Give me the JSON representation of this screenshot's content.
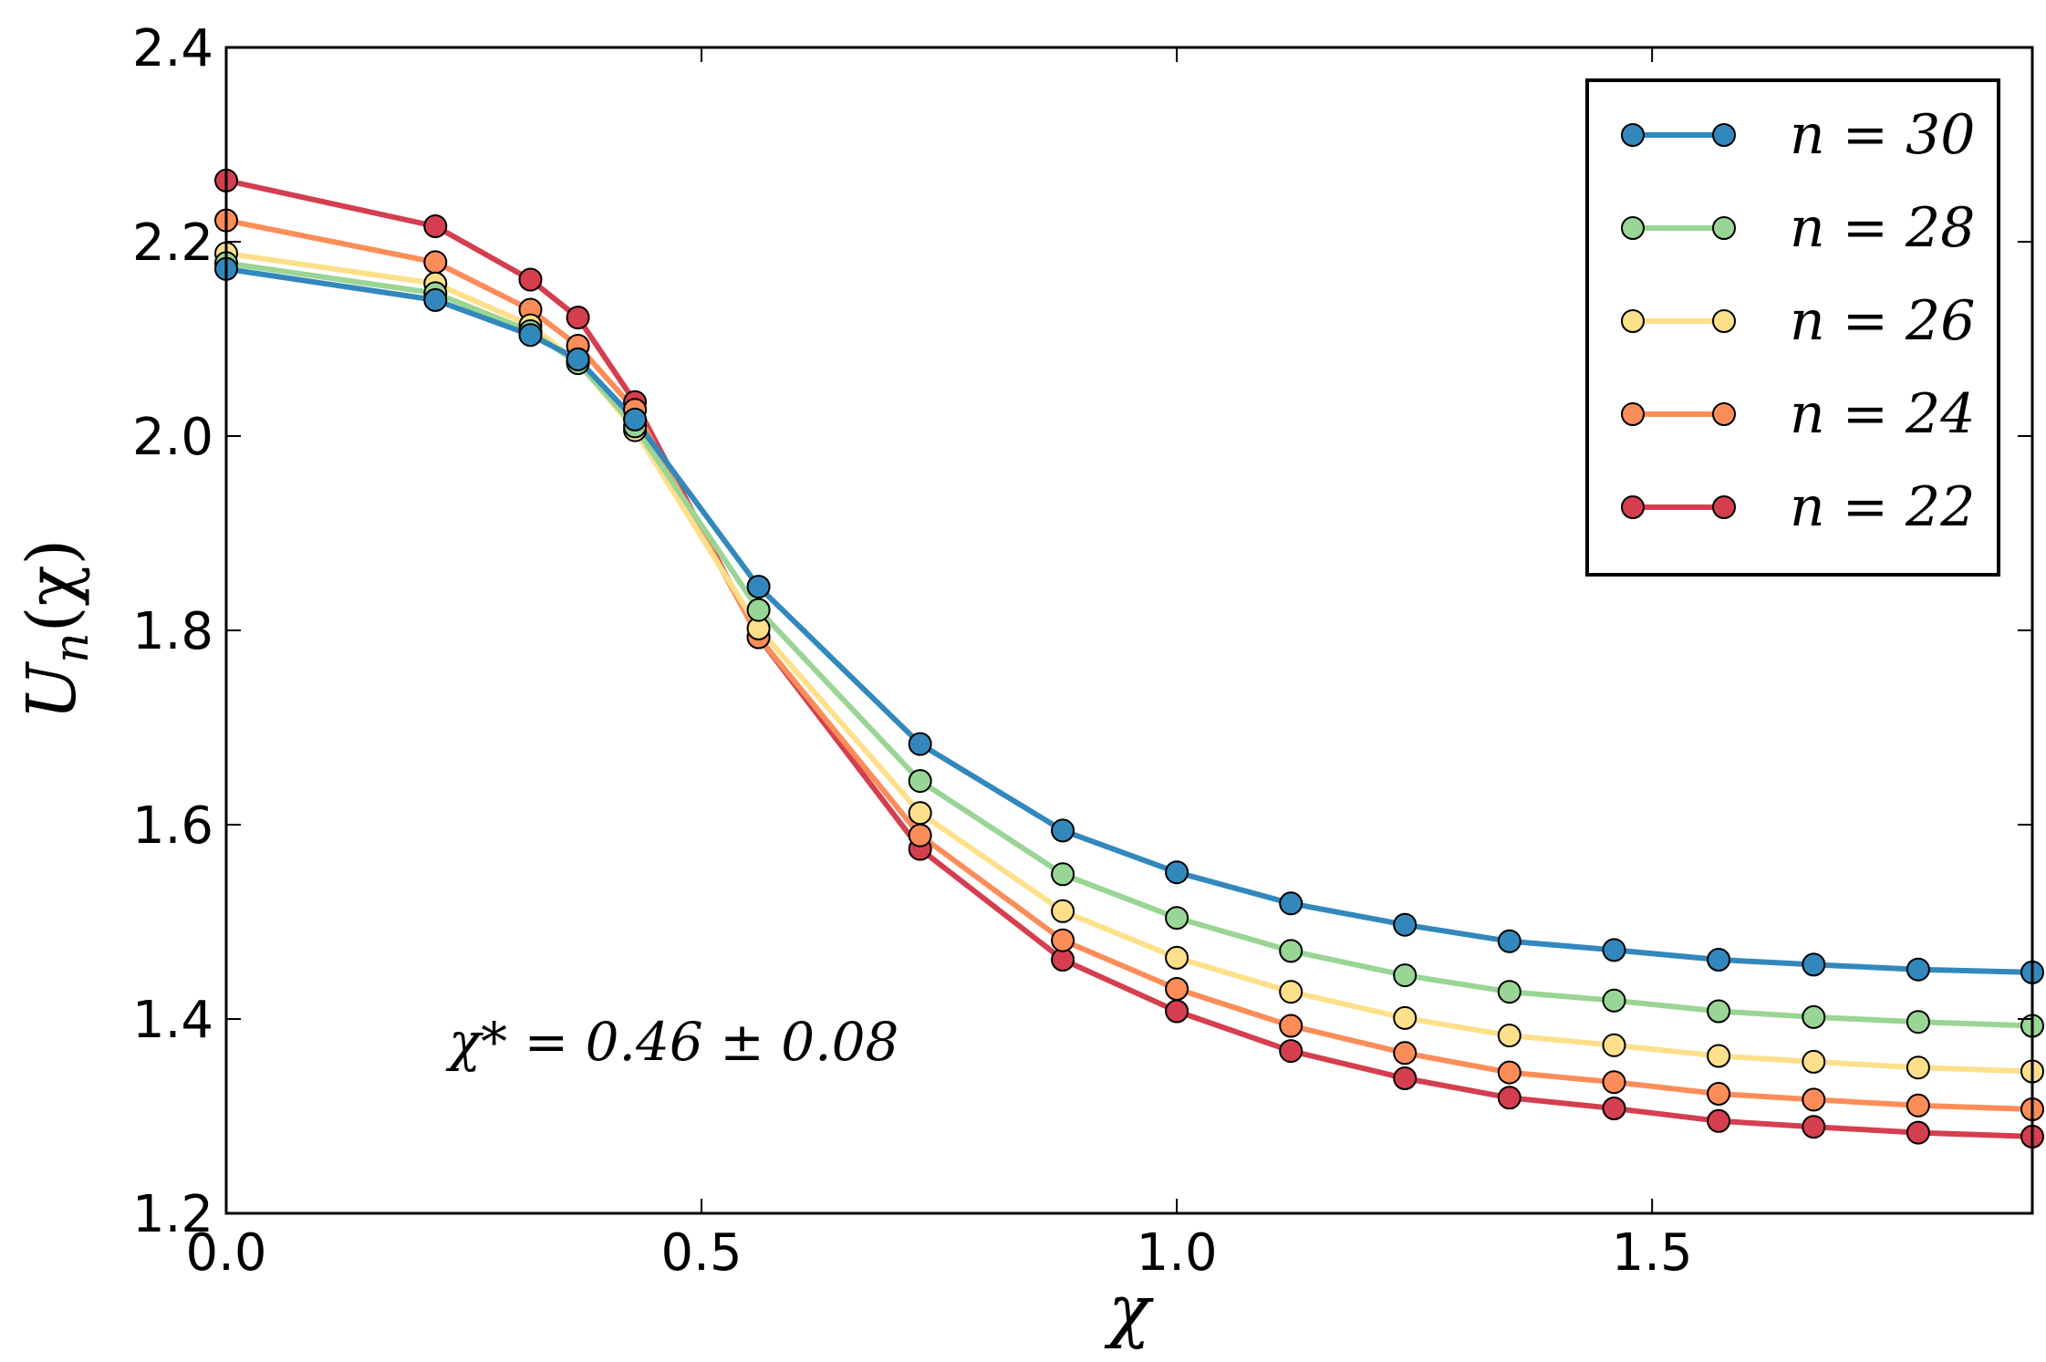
{
  "chart_data": {
    "type": "line",
    "title": "",
    "xlabel": "χ",
    "ylabel": "U_n(χ)",
    "ylabel_main": "U",
    "ylabel_sub": "n",
    "ylabel_arg": "(χ)",
    "xlim": [
      0.0,
      1.9
    ],
    "ylim": [
      1.2,
      2.4
    ],
    "xticks": [
      "0.0",
      "0.5",
      "1.0",
      "1.5"
    ],
    "yticks": [
      "1.2",
      "1.4",
      "1.6",
      "1.8",
      "2.0",
      "2.2",
      "2.4"
    ],
    "grid": false,
    "legend_position": "top-right",
    "annotation": "χ* = 0.46 ± 0.08",
    "x": [
      0.0,
      0.22,
      0.32,
      0.37,
      0.43,
      0.56,
      0.73,
      0.88,
      1.0,
      1.12,
      1.24,
      1.35,
      1.46,
      1.57,
      1.67,
      1.78,
      1.9
    ],
    "series": [
      {
        "name": "n = 30",
        "color": "#3288bd",
        "values": [
          2.172,
          2.14,
          2.104,
          2.079,
          2.017,
          1.845,
          1.683,
          1.594,
          1.551,
          1.519,
          1.497,
          1.48,
          1.471,
          1.461,
          1.456,
          1.451,
          1.448
        ]
      },
      {
        "name": "n = 28",
        "color": "#99d594",
        "values": [
          2.178,
          2.147,
          2.108,
          2.075,
          2.01,
          1.821,
          1.645,
          1.549,
          1.504,
          1.47,
          1.445,
          1.428,
          1.419,
          1.408,
          1.402,
          1.397,
          1.393
        ]
      },
      {
        "name": "n = 26",
        "color": "#fee08b",
        "values": [
          2.188,
          2.157,
          2.114,
          2.076,
          2.006,
          1.802,
          1.612,
          1.511,
          1.463,
          1.428,
          1.401,
          1.383,
          1.373,
          1.362,
          1.356,
          1.35,
          1.346
        ]
      },
      {
        "name": "n = 24",
        "color": "#fc8d59",
        "values": [
          2.222,
          2.179,
          2.13,
          2.093,
          2.027,
          1.793,
          1.589,
          1.481,
          1.431,
          1.393,
          1.365,
          1.345,
          1.335,
          1.323,
          1.317,
          1.311,
          1.307
        ]
      },
      {
        "name": "n = 22",
        "color": "#d53e4f",
        "values": [
          2.263,
          2.216,
          2.161,
          2.122,
          2.035,
          1.793,
          1.575,
          1.461,
          1.408,
          1.367,
          1.339,
          1.319,
          1.308,
          1.295,
          1.289,
          1.283,
          1.279
        ]
      }
    ]
  }
}
